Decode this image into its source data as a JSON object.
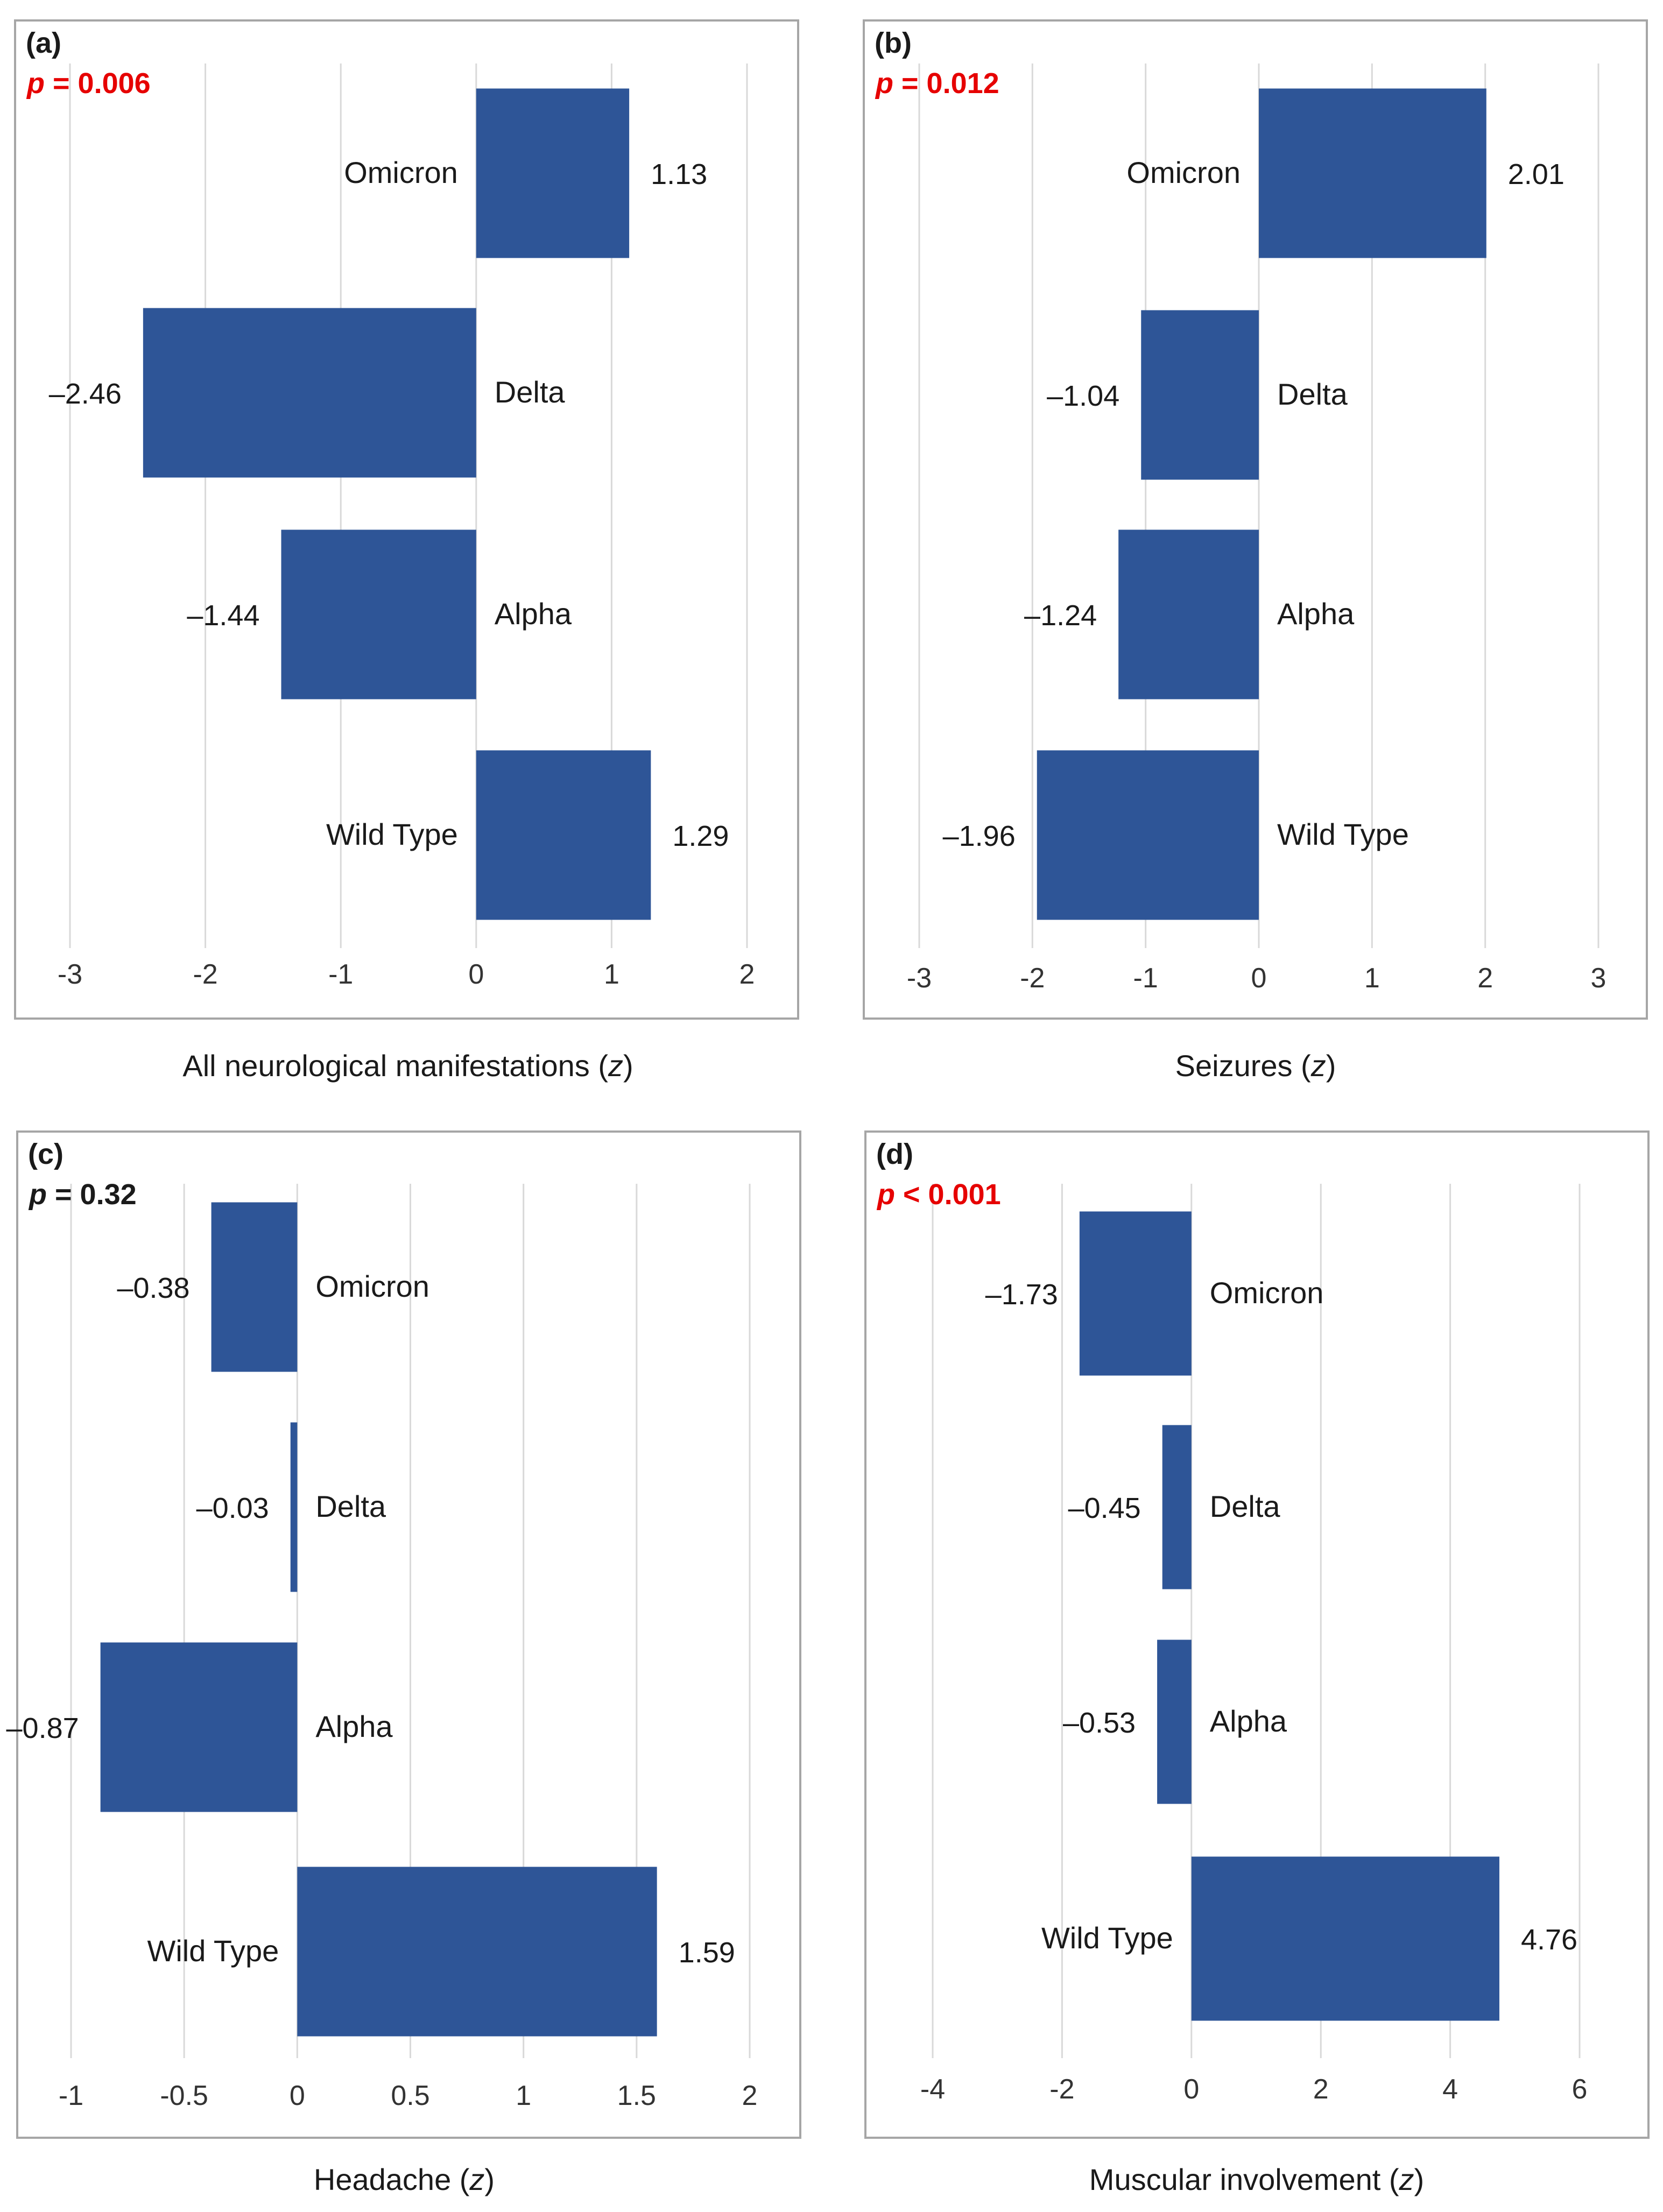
{
  "chart_data": [
    {
      "type": "bar",
      "orientation": "horizontal",
      "panel": "(a)",
      "p_value_label": "p",
      "p_value_text": " = 0.006",
      "p_color": "#e60000",
      "categories": [
        "Omicron",
        "Delta",
        "Alpha",
        "Wild Type"
      ],
      "values": [
        1.13,
        -2.46,
        -1.44,
        1.29
      ],
      "value_labels": [
        "1.13",
        "–2.46",
        "–1.44",
        "1.29"
      ],
      "xlabel_text": "All neurological manifestations (",
      "xlabel_var": "z",
      "xlabel_close": ")",
      "xlim": [
        -3,
        2
      ],
      "ticks": [
        -3,
        -2,
        -1,
        0,
        1,
        2
      ],
      "tick_labels": [
        "-3",
        "-2",
        "-1",
        "0",
        "1",
        "2"
      ],
      "bar_color": "#2e5597",
      "grid": true
    },
    {
      "type": "bar",
      "orientation": "horizontal",
      "panel": "(b)",
      "p_value_label": "p",
      "p_value_text": " = 0.012",
      "p_color": "#e60000",
      "categories": [
        "Omicron",
        "Delta",
        "Alpha",
        "Wild Type"
      ],
      "values": [
        2.01,
        -1.04,
        -1.24,
        -1.96
      ],
      "value_labels": [
        "2.01",
        "–1.04",
        "–1.24",
        "–1.96"
      ],
      "xlabel_text": "Seizures (",
      "xlabel_var": "z",
      "xlabel_close": ")",
      "xlim": [
        -3,
        3
      ],
      "ticks": [
        -3,
        -2,
        -1,
        0,
        1,
        2,
        3
      ],
      "tick_labels": [
        "-3",
        "-2",
        "-1",
        "0",
        "1",
        "2",
        "3"
      ],
      "bar_color": "#2e5597",
      "grid": true
    },
    {
      "type": "bar",
      "orientation": "horizontal",
      "panel": "(c)",
      "p_value_label": "p",
      "p_value_text": " = 0.32",
      "p_color": "#1a1a1a",
      "categories": [
        "Omicron",
        "Delta",
        "Alpha",
        "Wild Type"
      ],
      "values": [
        -0.38,
        -0.03,
        -0.87,
        1.59
      ],
      "value_labels": [
        "–0.38",
        "–0.03",
        "–0.87",
        "1.59"
      ],
      "xlabel_text": "Headache (",
      "xlabel_var": "z",
      "xlabel_close": ")",
      "xlim": [
        -1,
        2
      ],
      "ticks": [
        -1,
        -0.5,
        0,
        0.5,
        1,
        1.5,
        2
      ],
      "tick_labels": [
        "-1",
        "-0.5",
        "0",
        "0.5",
        "1",
        "1.5",
        "2"
      ],
      "bar_color": "#2e5597",
      "grid": true
    },
    {
      "type": "bar",
      "orientation": "horizontal",
      "panel": "(d)",
      "p_value_label": "p",
      "p_value_text": " < 0.001",
      "p_color": "#e60000",
      "categories": [
        "Omicron",
        "Delta",
        "Alpha",
        "Wild Type"
      ],
      "values": [
        -1.73,
        -0.45,
        -0.53,
        4.76
      ],
      "value_labels": [
        "–1.73",
        "–0.45",
        "–0.53",
        "4.76"
      ],
      "xlabel_text": "Muscular involvement (",
      "xlabel_var": "z",
      "xlabel_close": ")",
      "xlim": [
        -4,
        6
      ],
      "ticks": [
        -4,
        -2,
        0,
        2,
        4,
        6
      ],
      "tick_labels": [
        "-4",
        "-2",
        "0",
        "2",
        "4",
        "6"
      ],
      "bar_color": "#2e5597",
      "grid": true
    }
  ]
}
